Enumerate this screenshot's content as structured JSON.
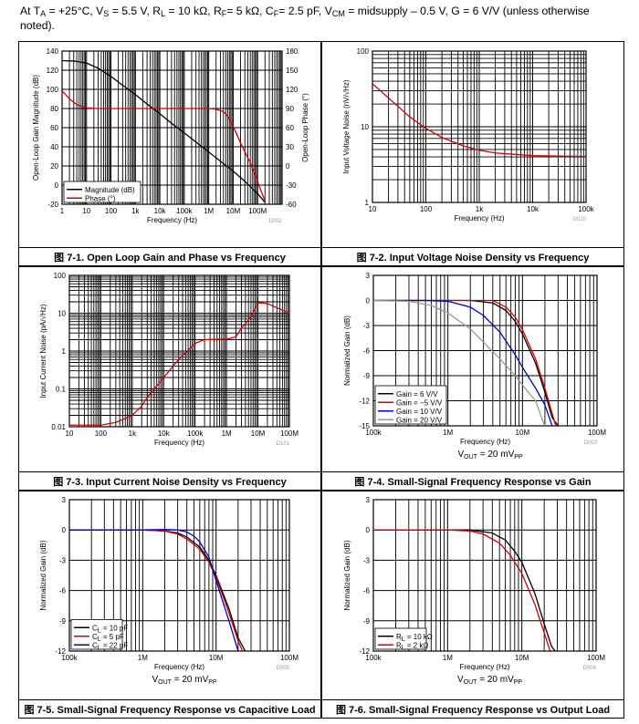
{
  "header": {
    "line1_prefix": "At T",
    "line1_ta_sub": "A",
    "line1_a": " = +25°C, V",
    "line1_vs_sub": "S",
    "line1_b": " = 5.5 V, R",
    "line1_rl_sub": "L",
    "line1_c": " = 10 kΩ, R",
    "line1_rf_sub": "F",
    "line1_d": "= 5 kΩ, C",
    "line1_cf_sub": "F",
    "line1_e": "= 2.5 pF, V",
    "line1_vcm_sub": "CM",
    "line1_f": " = midsupply – 0.5 V, G = 6 V/V (unless otherwise",
    "line2": "noted)."
  },
  "captions": [
    "图 7-1. Open Loop Gain and Phase vs Frequency",
    "图 7-2. Input Voltage Noise Density vs Frequency",
    "图 7-3. Input Current Noise Density vs Frequency",
    "图 7-4. Small-Signal Frequency Response vs Gain",
    "图 7-5. Small-Signal Frequency Response vs Capacitive Load",
    "图 7-6. Small-Signal Frequency Response vs Output Load"
  ],
  "chart_data": [
    {
      "id": "fig7-1",
      "type": "line",
      "xscale": "log",
      "xlim": [
        1,
        1000000000
      ],
      "ylim": [
        -20,
        140
      ],
      "y2lim": [
        -60,
        180
      ],
      "xticks": [
        "1",
        "10",
        "100",
        "1k",
        "10k",
        "100k",
        "1M",
        "10M",
        "100M"
      ],
      "yticks": [
        "-20",
        "0",
        "20",
        "40",
        "60",
        "80",
        "100",
        "120",
        "140"
      ],
      "y2ticks": [
        "-60",
        "-30",
        "0",
        "30",
        "60",
        "90",
        "120",
        "150",
        "180"
      ],
      "xlabel": "Frequency (Hz)",
      "ylabel": "Open-Loop Gain Magnitude (dB)",
      "y2label": "Open-Loop Phase (°)",
      "code": "D002",
      "legend": "bottom-left",
      "series": [
        {
          "name": "Magnitude (dB)",
          "color": "#000000",
          "axis": "y",
          "x": [
            1,
            3,
            10,
            30,
            100,
            300,
            1000,
            3000,
            10000,
            30000,
            100000,
            300000,
            1000000,
            3000000,
            10000000,
            30000000,
            100000000,
            200000000
          ],
          "y": [
            130,
            129.6,
            127.5,
            122,
            113.5,
            104.3,
            94.5,
            84.7,
            74.5,
            64.6,
            54.5,
            45,
            34.5,
            25,
            14.5,
            4,
            -9,
            -18
          ]
        },
        {
          "name": "Phase (°)",
          "color": "#d40000",
          "axis": "y2",
          "x": [
            1,
            2,
            4,
            10,
            30,
            100,
            1000,
            100000,
            1000000,
            2000000,
            4000000,
            6000000,
            10000000,
            20000000,
            50000000,
            100000000,
            200000000
          ],
          "y": [
            118,
            105,
            96,
            91,
            90,
            90,
            90,
            90,
            90,
            89,
            85,
            78,
            62,
            36,
            5,
            -25,
            -55
          ]
        }
      ]
    },
    {
      "id": "fig7-2",
      "type": "line",
      "xscale": "log",
      "yscale": "log",
      "xlim": [
        10,
        100000
      ],
      "ylim": [
        1,
        100
      ],
      "xticks": [
        "10",
        "100",
        "1k",
        "10k",
        "100k"
      ],
      "yticks": [
        "1",
        "10",
        "100"
      ],
      "xlabel": "Frequency (Hz)",
      "ylabel": "Input Voltage Noise (nV/√Hz)",
      "code": "D010",
      "series": [
        {
          "name": "Input Voltage Noise",
          "color": "#d40000",
          "x": [
            10,
            20,
            50,
            100,
            200,
            500,
            1000,
            2000,
            5000,
            10000,
            100000
          ],
          "y": [
            37,
            24,
            13.5,
            9.5,
            7.2,
            5.6,
            4.9,
            4.5,
            4.3,
            4.15,
            4.05
          ]
        }
      ]
    },
    {
      "id": "fig7-3",
      "type": "line",
      "xscale": "log",
      "yscale": "log",
      "xlim": [
        10,
        100000000
      ],
      "ylim": [
        0.01,
        100
      ],
      "xticks": [
        "10",
        "100",
        "1k",
        "10k",
        "100k",
        "1M",
        "10M",
        "100M"
      ],
      "yticks": [
        "0.01",
        "0.1",
        "1",
        "10",
        "100"
      ],
      "xlabel": "Frequency (Hz)",
      "ylabel": "Input Current Noise (pA/√Hz)",
      "code": "D101",
      "series": [
        {
          "name": "Input Current Noise",
          "color": "#d40000",
          "x": [
            10,
            100,
            300,
            1000,
            2000,
            3000,
            10000,
            30000,
            100000,
            200000,
            500000,
            1000000,
            2000000,
            3000000,
            6000000,
            10000000,
            20000000,
            100000000
          ],
          "y": [
            0.011,
            0.011,
            0.013,
            0.02,
            0.035,
            0.06,
            0.2,
            0.6,
            1.6,
            2,
            2.05,
            2.05,
            2.4,
            4,
            8,
            19,
            18,
            10
          ]
        }
      ]
    },
    {
      "id": "fig7-4",
      "type": "line",
      "xscale": "log",
      "xlim": [
        100000,
        100000000
      ],
      "ylim": [
        -15,
        3
      ],
      "xticks": [
        "100k",
        "1M",
        "10M",
        "100M"
      ],
      "yticks": [
        "-15",
        "-12",
        "-9",
        "-6",
        "-3",
        "0",
        "3"
      ],
      "xlabel": "Frequency (Hz)",
      "ylabel": "Normalized Gain (dB)",
      "annotation": "V",
      "annotation_sub": "OUT",
      "annotation_rest": " = 20 mV",
      "annotation_sub2": "PP",
      "code": "D003",
      "legend": "bottom-left",
      "series": [
        {
          "name": "Gain = 6 V/V",
          "color": "#000000",
          "x": [
            100000,
            1000000,
            2000000,
            4000000,
            6000000,
            8000000,
            10000000,
            15000000,
            20000000,
            25000000,
            30000000
          ],
          "y": [
            0,
            0,
            0,
            -0.3,
            -1.2,
            -2.5,
            -4,
            -7.5,
            -11,
            -14,
            -15
          ]
        },
        {
          "name": "Gain = −5 V/V",
          "color": "#d40000",
          "x": [
            100000,
            1000000,
            2000000,
            4000000,
            6000000,
            8000000,
            10000000,
            15000000,
            20000000,
            25000000,
            28000000
          ],
          "y": [
            0,
            0,
            0,
            0,
            -0.8,
            -2,
            -3.5,
            -7,
            -10.5,
            -13.5,
            -15
          ]
        },
        {
          "name": "Gain = 10 V/V",
          "color": "#0000cc",
          "x": [
            100000,
            500000,
            1000000,
            2000000,
            3000000,
            5000000,
            8000000,
            10000000,
            15000000,
            20000000,
            25000000
          ],
          "y": [
            0,
            0,
            -0.1,
            -0.8,
            -1.8,
            -3.8,
            -6.5,
            -8,
            -10.5,
            -12.5,
            -15
          ]
        },
        {
          "name": "Gain = 20 V/V",
          "color": "#999999",
          "x": [
            100000,
            300000,
            600000,
            1000000,
            2000000,
            3000000,
            5000000,
            8000000,
            12000000,
            15000000,
            18000000,
            20000000
          ],
          "y": [
            0,
            -0.1,
            -0.6,
            -1.5,
            -3.4,
            -5,
            -7,
            -9,
            -11,
            -12,
            -14,
            -15
          ]
        }
      ]
    },
    {
      "id": "fig7-5",
      "type": "line",
      "xscale": "log",
      "xlim": [
        100000,
        100000000
      ],
      "ylim": [
        -12,
        3
      ],
      "xticks": [
        "100k",
        "1M",
        "10M",
        "100M"
      ],
      "yticks": [
        "-12",
        "-9",
        "-6",
        "-3",
        "0",
        "3"
      ],
      "xlabel": "Frequency (Hz)",
      "ylabel": "Normalized Gain (dB)",
      "annotation": "V",
      "annotation_sub": "OUT",
      "annotation_rest": " = 20 mV",
      "annotation_sub2": "PP",
      "code": "D005",
      "legend": "bottom-left",
      "series": [
        {
          "name": "10 pF",
          "label_prefix": "C",
          "label_sub": "L",
          "label_rest": " = 10 pF",
          "color": "#000000",
          "x": [
            100000,
            1000000,
            2000000,
            3000000,
            4000000,
            6000000,
            8000000,
            10000000,
            15000000,
            20000000,
            25000000
          ],
          "y": [
            0,
            0,
            -0.1,
            -0.3,
            -0.7,
            -1.7,
            -3,
            -4.5,
            -7.8,
            -10.7,
            -12
          ]
        },
        {
          "name": "5 pF",
          "label_prefix": "C",
          "label_sub": "L",
          "label_rest": " = 5 pF",
          "color": "#d40000",
          "x": [
            100000,
            1000000,
            2000000,
            3000000,
            4000000,
            6000000,
            8000000,
            10000000,
            15000000,
            20000000,
            23000000
          ],
          "y": [
            0,
            0,
            -0.1,
            -0.4,
            -0.9,
            -1.9,
            -3.2,
            -4.7,
            -8.2,
            -11,
            -12
          ]
        },
        {
          "name": "22 pF",
          "label_prefix": "C",
          "label_sub": "L",
          "label_rest": " = 22 pF",
          "color": "#0000cc",
          "x": [
            100000,
            1000000,
            2000000,
            3000000,
            4000000,
            5000000,
            6000000,
            8000000,
            10000000,
            12000000,
            15000000,
            20000000
          ],
          "y": [
            0,
            0,
            0.05,
            0,
            -0.2,
            -0.6,
            -1.2,
            -2.7,
            -5,
            -6.8,
            -9,
            -12
          ]
        }
      ]
    },
    {
      "id": "fig7-6",
      "type": "line",
      "xscale": "log",
      "xlim": [
        100000,
        100000000
      ],
      "ylim": [
        -12,
        3
      ],
      "xticks": [
        "100k",
        "1M",
        "10M",
        "100M"
      ],
      "yticks": [
        "-12",
        "-9",
        "-6",
        "-3",
        "0",
        "3"
      ],
      "xlabel": "Frequency (Hz)",
      "ylabel": "Normalized Gain (dB)",
      "annotation": "V",
      "annotation_sub": "OUT",
      "annotation_rest": " = 20 mV",
      "annotation_sub2": "PP",
      "code": "D004",
      "legend": "bottom-left",
      "series": [
        {
          "name": "10 kΩ",
          "label_prefix": "R",
          "label_sub": "L",
          "label_rest": " = 10 kΩ",
          "color": "#000000",
          "x": [
            100000,
            1000000,
            2000000,
            4000000,
            6000000,
            8000000,
            10000000,
            15000000,
            20000000,
            25000000,
            28000000
          ],
          "y": [
            0,
            0,
            0,
            -0.3,
            -1,
            -2.1,
            -3.2,
            -6.3,
            -9.3,
            -11.5,
            -12
          ]
        },
        {
          "name": "2 kΩ",
          "label_prefix": "R",
          "label_sub": "L",
          "label_rest": " = 2 kΩ",
          "color": "#d40000",
          "x": [
            100000,
            1000000,
            2000000,
            3000000,
            5000000,
            7000000,
            10000000,
            15000000,
            20000000,
            24000000
          ],
          "y": [
            0,
            0,
            -0.1,
            -0.4,
            -1.3,
            -2.5,
            -4.3,
            -7.4,
            -10.2,
            -12
          ]
        }
      ]
    }
  ]
}
